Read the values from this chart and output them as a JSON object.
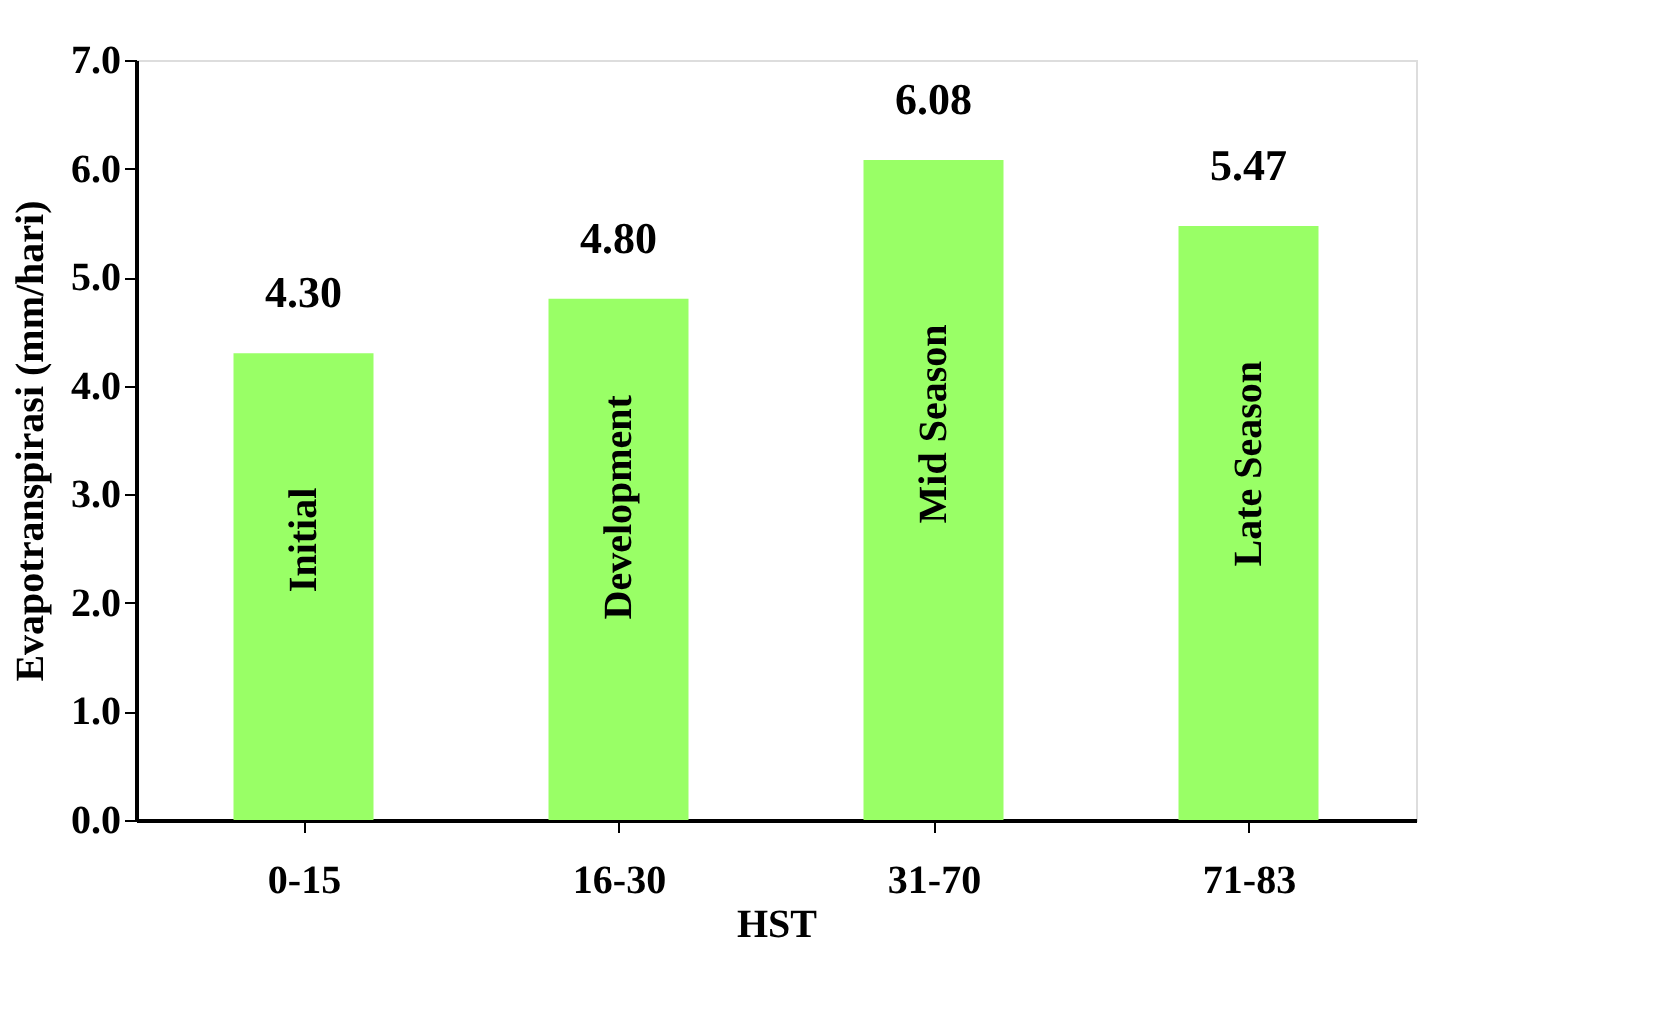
{
  "chart_data": {
    "type": "bar",
    "xlabel": "HST",
    "ylabel": "Evapotranspirasi (mm/hari)",
    "categories": [
      "0-15",
      "16-30",
      "31-70",
      "71-83"
    ],
    "values": [
      4.3,
      4.8,
      6.08,
      5.47
    ],
    "value_labels": [
      "4.30",
      "4.80",
      "6.08",
      "5.47"
    ],
    "color": "#99ff66",
    "ylim": [
      0,
      7
    ],
    "yticks": [
      {
        "value": 0,
        "label": "0.0"
      },
      {
        "value": 1,
        "label": "1.0"
      },
      {
        "value": 2,
        "label": "2.0"
      },
      {
        "value": 3,
        "label": "3.0"
      },
      {
        "value": 4,
        "label": "4.0"
      },
      {
        "value": 5,
        "label": "5.0"
      },
      {
        "value": 6,
        "label": "6.0"
      },
      {
        "value": 7,
        "label": "7.0"
      }
    ],
    "annotations": [
      "Initial",
      "Development",
      "Mid Season",
      "Late Season"
    ],
    "grid": false
  }
}
